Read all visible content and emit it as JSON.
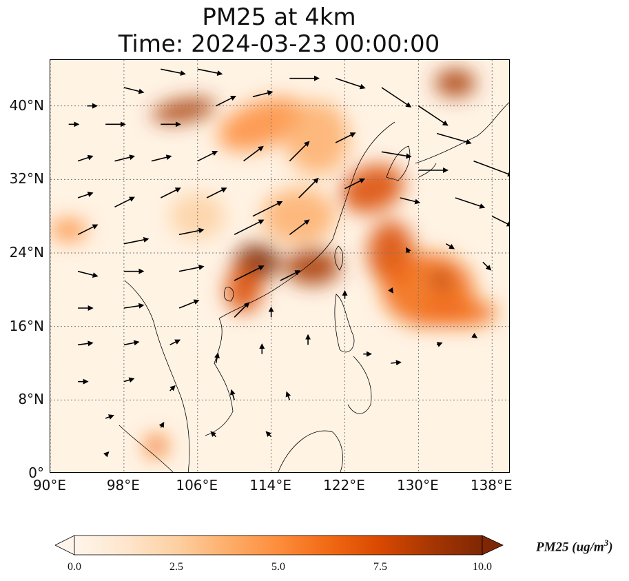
{
  "title_line1": "PM25 at 4km",
  "title_line2": "Time: 2024-03-23 00:00:00",
  "map": {
    "extent": {
      "lon_min": 90,
      "lon_max": 140,
      "lat_min": 0,
      "lat_max": 45
    },
    "lat_ticks": [
      {
        "value": 0,
        "label": "0°"
      },
      {
        "value": 8,
        "label": "8°N"
      },
      {
        "value": 16,
        "label": "16°N"
      },
      {
        "value": 24,
        "label": "24°N"
      },
      {
        "value": 32,
        "label": "32°N"
      },
      {
        "value": 40,
        "label": "40°N"
      }
    ],
    "lon_ticks": [
      {
        "value": 90,
        "label": "90°E"
      },
      {
        "value": 98,
        "label": "98°E"
      },
      {
        "value": 106,
        "label": "106°E"
      },
      {
        "value": 114,
        "label": "114°E"
      },
      {
        "value": 122,
        "label": "122°E"
      },
      {
        "value": 130,
        "label": "130°E"
      },
      {
        "value": 138,
        "label": "138°E"
      }
    ],
    "gridlines": true,
    "plumes": [
      {
        "lon": 104.5,
        "lat": 39.5,
        "rlon": 3.5,
        "rlat": 1.2,
        "value": 9,
        "rot": -10
      },
      {
        "lon": 113,
        "lat": 38,
        "rlon": 5,
        "rlat": 2.5,
        "value": 5,
        "rot": -20
      },
      {
        "lon": 119,
        "lat": 36.5,
        "rlon": 3.5,
        "rlat": 4,
        "value": 4,
        "rot": 0
      },
      {
        "lon": 134,
        "lat": 42.5,
        "rlon": 2.2,
        "rlat": 1.5,
        "value": 9,
        "rot": 0
      },
      {
        "lon": 125,
        "lat": 31,
        "rlon": 3.5,
        "rlat": 2.5,
        "value": 7,
        "rot": -20
      },
      {
        "lon": 112.5,
        "lat": 23,
        "rlon": 2.5,
        "rlat": 2,
        "value": 10,
        "rot": 0
      },
      {
        "lon": 111,
        "lat": 20,
        "rlon": 2,
        "rlat": 2.5,
        "value": 8,
        "rot": 0
      },
      {
        "lon": 118.5,
        "lat": 22.5,
        "rlon": 3,
        "rlat": 2,
        "value": 9,
        "rot": 0
      },
      {
        "lon": 127,
        "lat": 24,
        "rlon": 2.5,
        "rlat": 3.5,
        "value": 8,
        "rot": 0
      },
      {
        "lon": 131,
        "lat": 20,
        "rlon": 5,
        "rlat": 4,
        "value": 6,
        "rot": 0
      },
      {
        "lon": 134.5,
        "lat": 17.5,
        "rlon": 4,
        "rlat": 1.5,
        "value": 6,
        "rot": 0
      },
      {
        "lon": 132.5,
        "lat": 21,
        "rlon": 1,
        "rlat": 1,
        "value": 9,
        "rot": 0
      },
      {
        "lon": 92,
        "lat": 26.5,
        "rlon": 2,
        "rlat": 1.2,
        "value": 5,
        "rot": 0
      },
      {
        "lon": 101.5,
        "lat": 3,
        "rlon": 1.2,
        "rlat": 1.2,
        "value": 6,
        "rot": 0
      },
      {
        "lon": 117,
        "lat": 28,
        "rlon": 4,
        "rlat": 3,
        "value": 4,
        "rot": 0
      },
      {
        "lon": 106,
        "lat": 28,
        "rlon": 3,
        "rlat": 2.5,
        "value": 2,
        "rot": 0
      }
    ],
    "wind_vectors": [
      {
        "lon": 92,
        "lat": 38,
        "u": 1,
        "v": 0
      },
      {
        "lon": 94,
        "lat": 40,
        "u": 1,
        "v": 0
      },
      {
        "lon": 96,
        "lat": 38,
        "u": 2,
        "v": 0
      },
      {
        "lon": 98,
        "lat": 42,
        "u": 2,
        "v": -0.5
      },
      {
        "lon": 102,
        "lat": 44,
        "u": 2.5,
        "v": -0.5
      },
      {
        "lon": 106,
        "lat": 44,
        "u": 2.5,
        "v": -0.5
      },
      {
        "lon": 102,
        "lat": 38,
        "u": 2,
        "v": 0
      },
      {
        "lon": 108,
        "lat": 40,
        "u": 2,
        "v": 1
      },
      {
        "lon": 112,
        "lat": 41,
        "u": 2,
        "v": 0.5
      },
      {
        "lon": 116,
        "lat": 43,
        "u": 3,
        "v": 0
      },
      {
        "lon": 121,
        "lat": 43,
        "u": 3,
        "v": -1
      },
      {
        "lon": 126,
        "lat": 42,
        "u": 3,
        "v": -2
      },
      {
        "lon": 130,
        "lat": 40,
        "u": 3,
        "v": -2
      },
      {
        "lon": 132,
        "lat": 37,
        "u": 3.5,
        "v": -1
      },
      {
        "lon": 136,
        "lat": 34,
        "u": 4,
        "v": -1.5
      },
      {
        "lon": 134,
        "lat": 30,
        "u": 3,
        "v": -1
      },
      {
        "lon": 138,
        "lat": 28,
        "u": 2,
        "v": -1
      },
      {
        "lon": 93,
        "lat": 34,
        "u": 1.5,
        "v": 0.5
      },
      {
        "lon": 97,
        "lat": 34,
        "u": 2,
        "v": 0.5
      },
      {
        "lon": 101,
        "lat": 34,
        "u": 2,
        "v": 0.5
      },
      {
        "lon": 106,
        "lat": 34,
        "u": 2,
        "v": 1
      },
      {
        "lon": 111,
        "lat": 34,
        "u": 2,
        "v": 1.5
      },
      {
        "lon": 116,
        "lat": 34,
        "u": 2,
        "v": 2
      },
      {
        "lon": 121,
        "lat": 36,
        "u": 2,
        "v": 1
      },
      {
        "lon": 126,
        "lat": 35,
        "u": 3,
        "v": -0.5
      },
      {
        "lon": 130,
        "lat": 33,
        "u": 3,
        "v": 0
      },
      {
        "lon": 93,
        "lat": 30,
        "u": 1.5,
        "v": 0.5
      },
      {
        "lon": 97,
        "lat": 29,
        "u": 2,
        "v": 1
      },
      {
        "lon": 102,
        "lat": 30,
        "u": 2,
        "v": 1
      },
      {
        "lon": 107,
        "lat": 30,
        "u": 2,
        "v": 1
      },
      {
        "lon": 112,
        "lat": 28,
        "u": 3,
        "v": 1.5
      },
      {
        "lon": 117,
        "lat": 30,
        "u": 2,
        "v": 2
      },
      {
        "lon": 122,
        "lat": 31,
        "u": 2,
        "v": 1
      },
      {
        "lon": 128,
        "lat": 30,
        "u": 2,
        "v": -0.5
      },
      {
        "lon": 93,
        "lat": 26,
        "u": 2,
        "v": 1
      },
      {
        "lon": 98,
        "lat": 25,
        "u": 2.5,
        "v": 0.5
      },
      {
        "lon": 104,
        "lat": 26,
        "u": 2.5,
        "v": 0.5
      },
      {
        "lon": 110,
        "lat": 26,
        "u": 3,
        "v": 1.5
      },
      {
        "lon": 116,
        "lat": 26,
        "u": 2,
        "v": 1.5
      },
      {
        "lon": 93,
        "lat": 22,
        "u": 2,
        "v": -0.5
      },
      {
        "lon": 98,
        "lat": 22,
        "u": 2,
        "v": 0
      },
      {
        "lon": 104,
        "lat": 22,
        "u": 2.5,
        "v": 0.5
      },
      {
        "lon": 110,
        "lat": 21,
        "u": 3,
        "v": 1.5
      },
      {
        "lon": 115,
        "lat": 21,
        "u": 2,
        "v": 1
      },
      {
        "lon": 93,
        "lat": 18,
        "u": 1.5,
        "v": 0
      },
      {
        "lon": 98,
        "lat": 18,
        "u": 2,
        "v": 0.3
      },
      {
        "lon": 104,
        "lat": 18,
        "u": 2,
        "v": 0.8
      },
      {
        "lon": 110,
        "lat": 17,
        "u": 1.5,
        "v": 1.5
      },
      {
        "lon": 114,
        "lat": 17,
        "u": 0,
        "v": 1
      },
      {
        "lon": 93,
        "lat": 14,
        "u": 1.5,
        "v": 0.2
      },
      {
        "lon": 98,
        "lat": 14,
        "u": 1.5,
        "v": 0.3
      },
      {
        "lon": 103,
        "lat": 14,
        "u": 1,
        "v": 0.5
      },
      {
        "lon": 108,
        "lat": 12,
        "u": 0.2,
        "v": 1
      },
      {
        "lon": 113,
        "lat": 13,
        "u": 0,
        "v": 1
      },
      {
        "lon": 118,
        "lat": 14,
        "u": 0,
        "v": 1
      },
      {
        "lon": 93,
        "lat": 10,
        "u": 1,
        "v": 0
      },
      {
        "lon": 98,
        "lat": 10,
        "u": 1,
        "v": 0.3
      },
      {
        "lon": 103,
        "lat": 9,
        "u": 0.5,
        "v": 0.5
      },
      {
        "lon": 110,
        "lat": 8,
        "u": -0.3,
        "v": 1
      },
      {
        "lon": 116,
        "lat": 8,
        "u": -0.3,
        "v": 0.8
      },
      {
        "lon": 96,
        "lat": 6,
        "u": 0.8,
        "v": 0.3
      },
      {
        "lon": 102,
        "lat": 5,
        "u": 0.3,
        "v": 0.5
      },
      {
        "lon": 108,
        "lat": 4,
        "u": -0.5,
        "v": 0.5
      },
      {
        "lon": 114,
        "lat": 4,
        "u": -0.5,
        "v": 0.5
      },
      {
        "lon": 124,
        "lat": 13,
        "u": 0.8,
        "v": 0
      },
      {
        "lon": 127,
        "lat": 12,
        "u": 1,
        "v": 0.1
      },
      {
        "lon": 132,
        "lat": 14,
        "u": 0.5,
        "v": 0.2
      },
      {
        "lon": 136,
        "lat": 15,
        "u": 0.3,
        "v": -0.2
      },
      {
        "lon": 122,
        "lat": 19,
        "u": 0,
        "v": 0.8
      },
      {
        "lon": 127,
        "lat": 20,
        "u": 0.2,
        "v": -0.3
      },
      {
        "lon": 129,
        "lat": 24,
        "u": -0.3,
        "v": 0.5
      },
      {
        "lon": 133,
        "lat": 25,
        "u": 0.8,
        "v": -0.5
      },
      {
        "lon": 137,
        "lat": 23,
        "u": 0.8,
        "v": -0.8
      },
      {
        "lon": 96,
        "lat": 2,
        "u": 0.3,
        "v": 0.3
      }
    ]
  },
  "colorbar": {
    "min": 0.0,
    "max": 10.0,
    "colors": [
      "#fff5eb",
      "#fee6ce",
      "#fdd0a2",
      "#fdae6b",
      "#fd8d3c",
      "#f16913",
      "#d94801",
      "#a63603",
      "#7f2704"
    ],
    "ticks": [
      "0.0",
      "2.5",
      "5.0",
      "7.5",
      "10.0"
    ],
    "label_text": "PM25 (ug/m",
    "label_sup": "3",
    "label_close": ")"
  },
  "colors": {
    "land_outline": "#000000",
    "gridline": "#777777",
    "arrow": "#000000"
  }
}
